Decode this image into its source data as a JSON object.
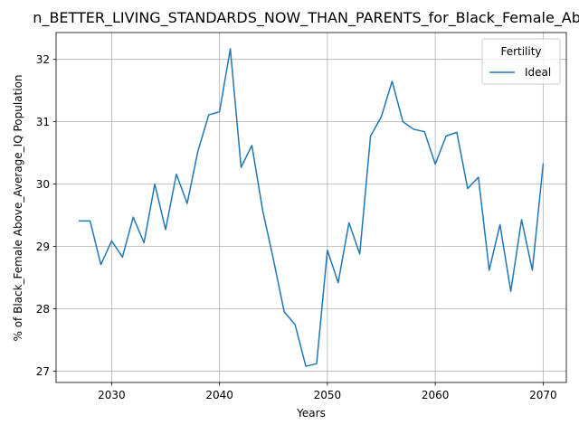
{
  "chart_data": {
    "type": "line",
    "title": "n_BETTER_LIVING_STANDARDS_NOW_THAN_PARENTS_for_Black_Female_Abo",
    "xlabel": "Years",
    "ylabel": "% of Black_Female Above_Average_IQ Population",
    "xlim": [
      2024.85,
      2072.15
    ],
    "ylim": [
      26.82,
      32.43
    ],
    "x_ticks": [
      2030,
      2040,
      2050,
      2060,
      2070
    ],
    "y_ticks": [
      27,
      28,
      29,
      30,
      31,
      32
    ],
    "grid": true,
    "legend": {
      "title": "Fertility",
      "location": "upper right"
    },
    "series": [
      {
        "name": "Ideal",
        "color": "#1f77b4",
        "x": [
          2027,
          2028,
          2029,
          2030,
          2031,
          2032,
          2033,
          2034,
          2035,
          2036,
          2037,
          2038,
          2039,
          2040,
          2041,
          2042,
          2043,
          2044,
          2045,
          2046,
          2047,
          2048,
          2049,
          2050,
          2051,
          2052,
          2053,
          2054,
          2055,
          2056,
          2057,
          2058,
          2059,
          2060,
          2061,
          2062,
          2063,
          2064,
          2065,
          2066,
          2067,
          2068,
          2069,
          2070
        ],
        "values": [
          29.41,
          29.41,
          28.71,
          29.09,
          28.83,
          29.47,
          29.06,
          30.0,
          29.27,
          30.16,
          29.69,
          30.53,
          31.11,
          31.16,
          32.17,
          30.27,
          30.62,
          29.58,
          28.79,
          27.95,
          27.75,
          27.08,
          27.12,
          28.94,
          28.42,
          29.38,
          28.88,
          30.77,
          31.08,
          31.65,
          31.0,
          30.88,
          30.84,
          30.32,
          30.77,
          30.83,
          29.93,
          30.11,
          28.62,
          29.35,
          28.28,
          29.43,
          28.62,
          30.32
        ]
      }
    ]
  }
}
